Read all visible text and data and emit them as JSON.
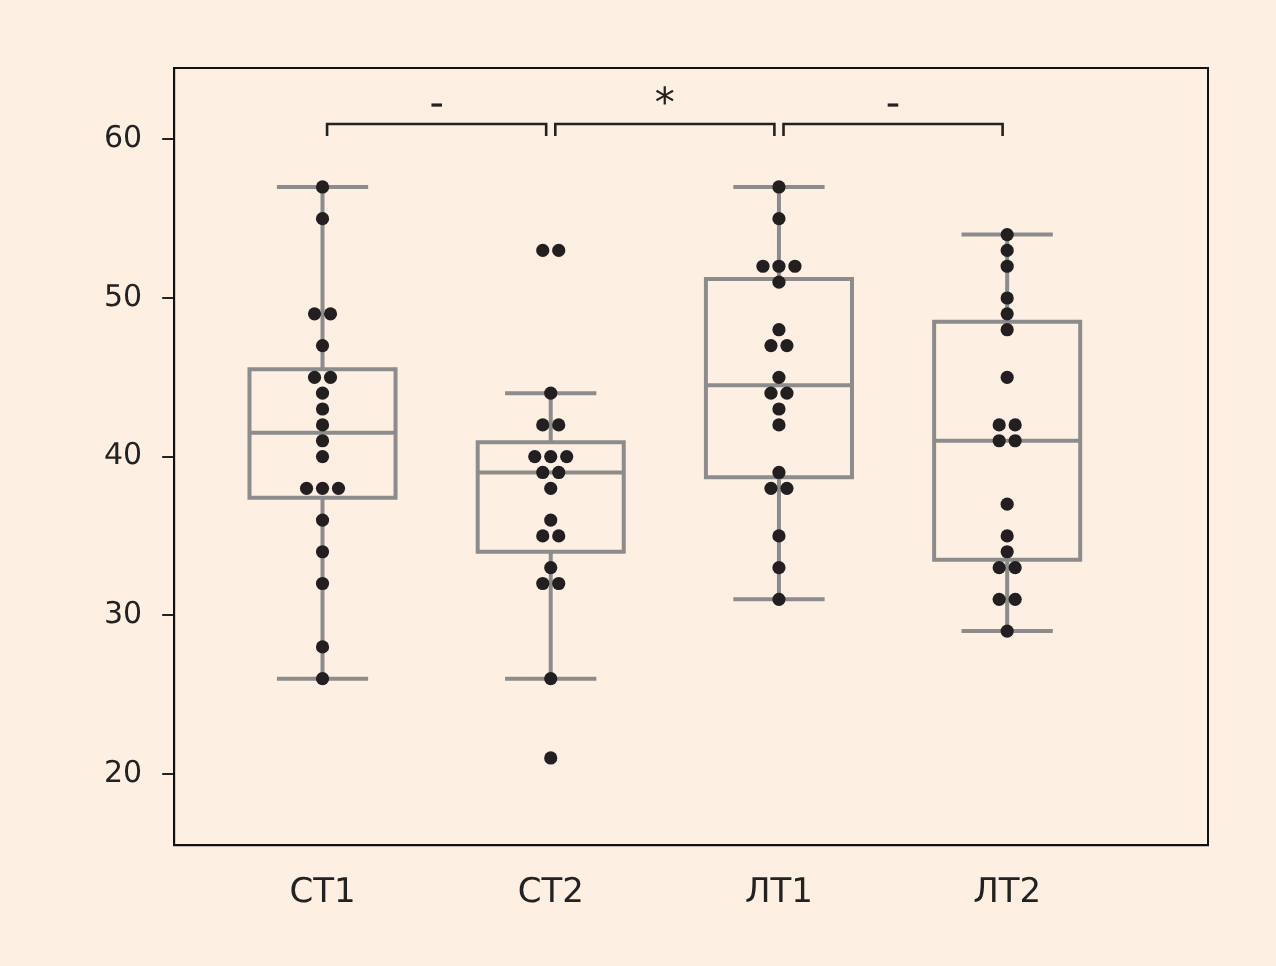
{
  "chart_data": {
    "type": "box",
    "categories": [
      "СТ1",
      "СТ2",
      "ЛТ1",
      "ЛТ2"
    ],
    "boxes": [
      {
        "low": 26,
        "q1": 37.4,
        "median": 41.5,
        "q3": 45.5,
        "high": 57
      },
      {
        "low": 26,
        "q1": 34,
        "median": 39,
        "q3": 40.9,
        "high": 44
      },
      {
        "low": 31,
        "q1": 38.7,
        "median": 44.5,
        "q3": 51.2,
        "high": 57
      },
      {
        "low": 29,
        "q1": 33.5,
        "median": 41,
        "q3": 48.5,
        "high": 54
      }
    ],
    "color": "#8c8c8c",
    "series": [
      {
        "type": "scatter",
        "color": "#231f20",
        "x": [
          "СТ1",
          "СТ1",
          "СТ1",
          "СТ1",
          "СТ1",
          "СТ1",
          "СТ1",
          "СТ1",
          "СТ1",
          "СТ1",
          "СТ1",
          "СТ1",
          "СТ1",
          "СТ1",
          "СТ1",
          "СТ1",
          "СТ1",
          "СТ1",
          "СТ1",
          "СТ1",
          "СТ2",
          "СТ2",
          "СТ2",
          "СТ2",
          "СТ2",
          "СТ2",
          "СТ2",
          "СТ2",
          "СТ2",
          "СТ2",
          "СТ2",
          "СТ2",
          "СТ2",
          "СТ2",
          "СТ2",
          "СТ2",
          "СТ2",
          "СТ2",
          "СТ2",
          "ЛТ1",
          "ЛТ1",
          "ЛТ1",
          "ЛТ1",
          "ЛТ1",
          "ЛТ1",
          "ЛТ1",
          "ЛТ1",
          "ЛТ1",
          "ЛТ1",
          "ЛТ1",
          "ЛТ1",
          "ЛТ1",
          "ЛТ1",
          "ЛТ1",
          "ЛТ1",
          "ЛТ1",
          "ЛТ1",
          "ЛТ1",
          "ЛТ1",
          "ЛТ2",
          "ЛТ2",
          "ЛТ2",
          "ЛТ2",
          "ЛТ2",
          "ЛТ2",
          "ЛТ2",
          "ЛТ2",
          "ЛТ2",
          "ЛТ2",
          "ЛТ2",
          "ЛТ2",
          "ЛТ2",
          "ЛТ2",
          "ЛТ2",
          "ЛТ2",
          "ЛТ2",
          "ЛТ2",
          "ЛТ2"
        ],
        "values": [
          57,
          55,
          49,
          49,
          47,
          45,
          45,
          44,
          43,
          42,
          41,
          40,
          38,
          38,
          38,
          36,
          34,
          32,
          28,
          26,
          53,
          53,
          44,
          42,
          42,
          40,
          40,
          40,
          39,
          39,
          38,
          36,
          35,
          35,
          33,
          32,
          32,
          26,
          21,
          57,
          55,
          52,
          52,
          52,
          51,
          48,
          47,
          47,
          45,
          44,
          44,
          43,
          42,
          39,
          38,
          38,
          35,
          33,
          31,
          54,
          53,
          52,
          50,
          49,
          48,
          45,
          42,
          42,
          41,
          41,
          37,
          35,
          34,
          33,
          33,
          31,
          31,
          29
        ]
      }
    ],
    "ylim": [
      15.5,
      64.5
    ],
    "yticks": [
      20,
      30,
      40,
      50,
      60
    ],
    "grid": false,
    "marker": "circle",
    "legend": false,
    "annotations": [
      "-",
      "*",
      "-"
    ]
  }
}
